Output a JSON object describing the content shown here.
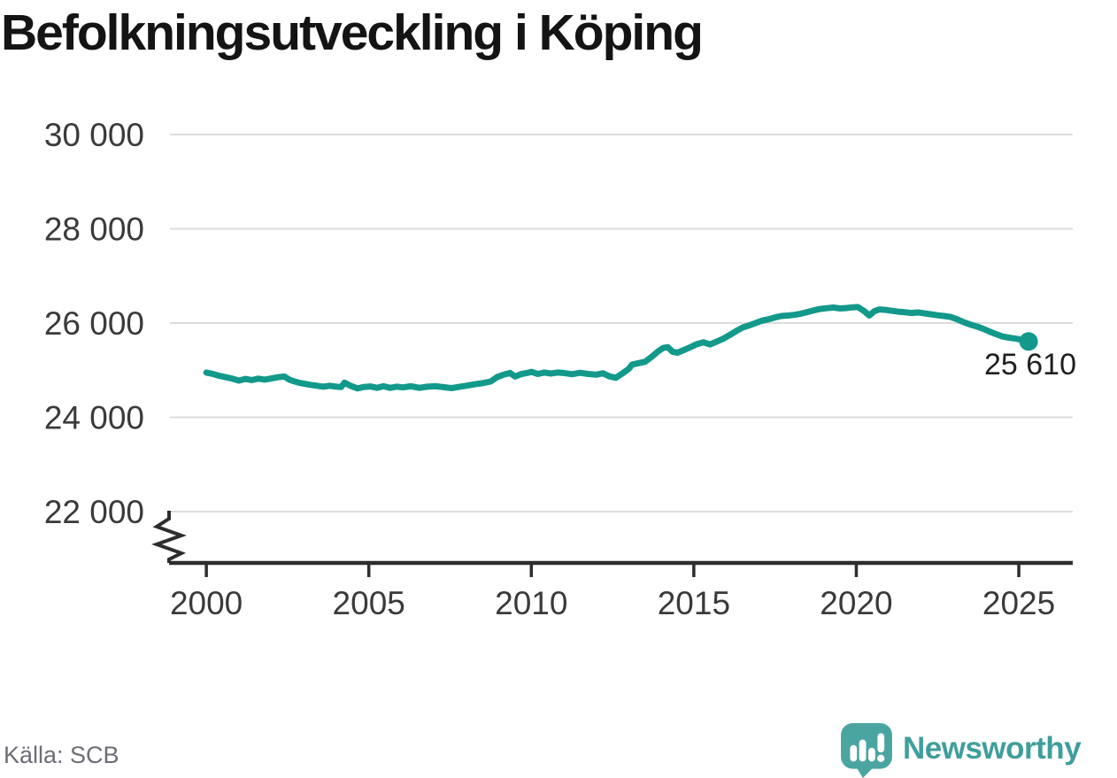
{
  "header": {
    "title": "Befolkningsutveckling i Köping"
  },
  "footer": {
    "source": "Källa: SCB",
    "brand": "Newsworthy"
  },
  "colors": {
    "line": "#12998b",
    "grid": "#dcdcdc",
    "axis": "#2d2d2d",
    "logo_bubble": "#4aa5a1",
    "wordmark": "#3f9e9b"
  },
  "chart_data": {
    "type": "line",
    "title": "Befolkningsutveckling i Köping",
    "xlabel": "",
    "ylabel": "",
    "grid": "horizontal",
    "legend": "none",
    "axis_break": true,
    "x_ticks": [
      2000,
      2005,
      2010,
      2015,
      2020,
      2025
    ],
    "x_tick_labels": [
      "2000",
      "2005",
      "2010",
      "2015",
      "2020",
      "2025"
    ],
    "y_ticks": [
      30000,
      28000,
      26000,
      24000,
      22000
    ],
    "y_tick_labels": [
      "30 000",
      "28 000",
      "26 000",
      "24 000",
      "22 000"
    ],
    "x_range_years": [
      1998.88,
      2026.66
    ],
    "y_range": [
      22000,
      30000
    ],
    "line_color": "#12998b",
    "last_point_label": "25 610",
    "last_point_value": 25610,
    "series": [
      {
        "name": "Köping",
        "points": [
          [
            2000.0,
            24950
          ],
          [
            2000.2,
            24920
          ],
          [
            2000.4,
            24880
          ],
          [
            2000.6,
            24850
          ],
          [
            2000.8,
            24820
          ],
          [
            2001.0,
            24780
          ],
          [
            2001.2,
            24815
          ],
          [
            2001.4,
            24790
          ],
          [
            2001.6,
            24820
          ],
          [
            2001.8,
            24800
          ],
          [
            2002.0,
            24825
          ],
          [
            2002.2,
            24850
          ],
          [
            2002.4,
            24865
          ],
          [
            2002.55,
            24800
          ],
          [
            2002.7,
            24765
          ],
          [
            2002.85,
            24735
          ],
          [
            2003.0,
            24715
          ],
          [
            2003.2,
            24690
          ],
          [
            2003.4,
            24670
          ],
          [
            2003.6,
            24650
          ],
          [
            2003.8,
            24670
          ],
          [
            2004.0,
            24650
          ],
          [
            2004.15,
            24645
          ],
          [
            2004.25,
            24735
          ],
          [
            2004.45,
            24665
          ],
          [
            2004.65,
            24615
          ],
          [
            2004.85,
            24645
          ],
          [
            2005.05,
            24655
          ],
          [
            2005.25,
            24625
          ],
          [
            2005.45,
            24660
          ],
          [
            2005.65,
            24625
          ],
          [
            2005.85,
            24650
          ],
          [
            2006.05,
            24635
          ],
          [
            2006.3,
            24660
          ],
          [
            2006.55,
            24625
          ],
          [
            2006.8,
            24650
          ],
          [
            2007.05,
            24660
          ],
          [
            2007.3,
            24640
          ],
          [
            2007.55,
            24620
          ],
          [
            2007.8,
            24650
          ],
          [
            2008.0,
            24670
          ],
          [
            2008.25,
            24700
          ],
          [
            2008.5,
            24725
          ],
          [
            2008.75,
            24760
          ],
          [
            2008.95,
            24855
          ],
          [
            2009.15,
            24905
          ],
          [
            2009.35,
            24940
          ],
          [
            2009.5,
            24865
          ],
          [
            2009.7,
            24920
          ],
          [
            2009.9,
            24945
          ],
          [
            2010.0,
            24965
          ],
          [
            2010.2,
            24920
          ],
          [
            2010.4,
            24950
          ],
          [
            2010.6,
            24930
          ],
          [
            2010.8,
            24950
          ],
          [
            2011.0,
            24940
          ],
          [
            2011.25,
            24915
          ],
          [
            2011.5,
            24945
          ],
          [
            2011.75,
            24920
          ],
          [
            2012.0,
            24905
          ],
          [
            2012.2,
            24935
          ],
          [
            2012.4,
            24870
          ],
          [
            2012.6,
            24840
          ],
          [
            2012.8,
            24930
          ],
          [
            2013.0,
            25030
          ],
          [
            2013.1,
            25120
          ],
          [
            2013.3,
            25150
          ],
          [
            2013.5,
            25180
          ],
          [
            2013.7,
            25280
          ],
          [
            2013.9,
            25400
          ],
          [
            2014.05,
            25470
          ],
          [
            2014.2,
            25490
          ],
          [
            2014.35,
            25390
          ],
          [
            2014.5,
            25370
          ],
          [
            2014.7,
            25430
          ],
          [
            2014.9,
            25490
          ],
          [
            2015.1,
            25555
          ],
          [
            2015.3,
            25590
          ],
          [
            2015.5,
            25545
          ],
          [
            2015.7,
            25605
          ],
          [
            2015.9,
            25665
          ],
          [
            2016.1,
            25745
          ],
          [
            2016.3,
            25830
          ],
          [
            2016.5,
            25905
          ],
          [
            2016.7,
            25950
          ],
          [
            2016.9,
            26000
          ],
          [
            2017.1,
            26050
          ],
          [
            2017.3,
            26080
          ],
          [
            2017.5,
            26120
          ],
          [
            2017.7,
            26150
          ],
          [
            2017.9,
            26160
          ],
          [
            2018.1,
            26175
          ],
          [
            2018.3,
            26200
          ],
          [
            2018.5,
            26235
          ],
          [
            2018.7,
            26270
          ],
          [
            2018.9,
            26300
          ],
          [
            2019.1,
            26315
          ],
          [
            2019.3,
            26330
          ],
          [
            2019.5,
            26310
          ],
          [
            2019.7,
            26320
          ],
          [
            2019.9,
            26335
          ],
          [
            2020.05,
            26340
          ],
          [
            2020.25,
            26250
          ],
          [
            2020.4,
            26160
          ],
          [
            2020.55,
            26250
          ],
          [
            2020.7,
            26290
          ],
          [
            2020.9,
            26280
          ],
          [
            2021.1,
            26260
          ],
          [
            2021.3,
            26240
          ],
          [
            2021.5,
            26230
          ],
          [
            2021.7,
            26215
          ],
          [
            2021.9,
            26225
          ],
          [
            2022.1,
            26205
          ],
          [
            2022.3,
            26185
          ],
          [
            2022.5,
            26165
          ],
          [
            2022.7,
            26150
          ],
          [
            2022.9,
            26130
          ],
          [
            2023.1,
            26080
          ],
          [
            2023.3,
            26020
          ],
          [
            2023.5,
            25970
          ],
          [
            2023.7,
            25930
          ],
          [
            2023.9,
            25880
          ],
          [
            2024.1,
            25820
          ],
          [
            2024.3,
            25765
          ],
          [
            2024.5,
            25715
          ],
          [
            2024.7,
            25690
          ],
          [
            2024.9,
            25670
          ],
          [
            2025.1,
            25645
          ],
          [
            2025.3,
            25610
          ]
        ]
      }
    ]
  }
}
